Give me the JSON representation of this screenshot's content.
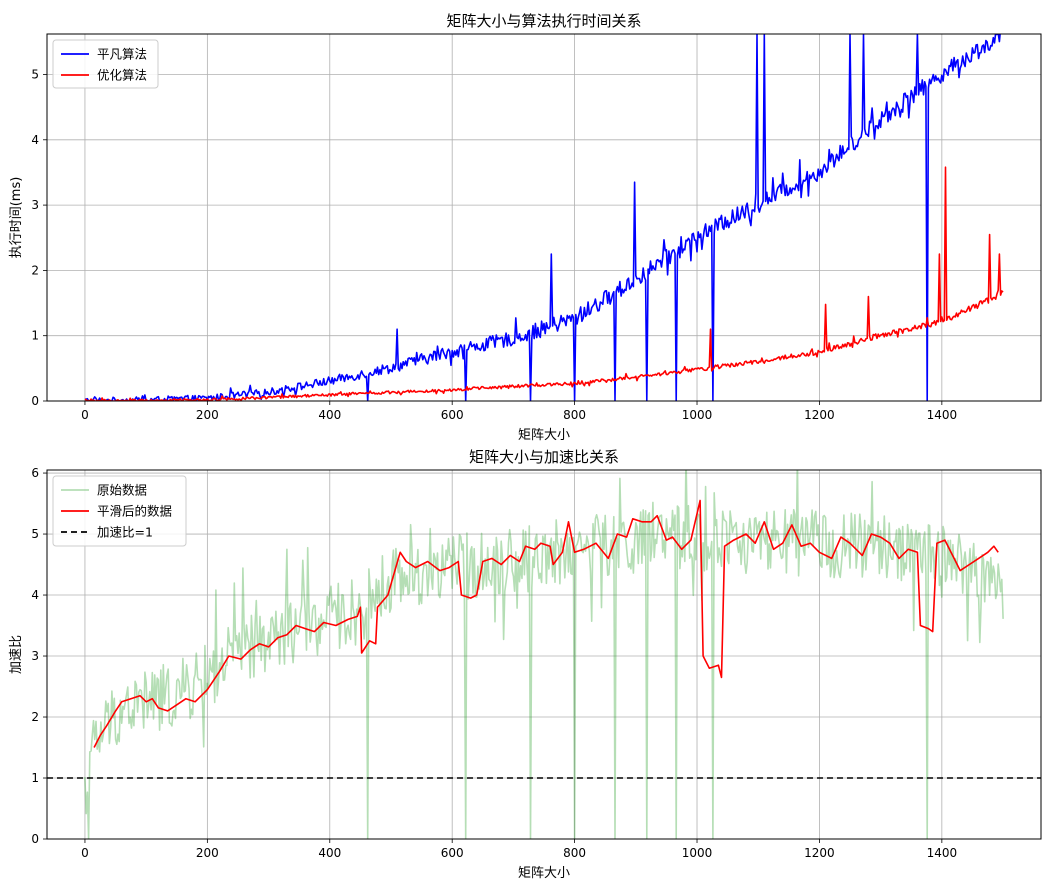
{
  "chart_data": [
    {
      "type": "line",
      "title": "矩阵大小与算法执行时间关系",
      "xlabel": "矩阵大小",
      "ylabel": "执行时间(ms)",
      "xlim": [
        -62,
        1562
      ],
      "ylim": [
        0,
        5.62
      ],
      "xticks": [
        0,
        200,
        400,
        600,
        800,
        1000,
        1200,
        1400
      ],
      "yticks": [
        0,
        1,
        2,
        3,
        4,
        5
      ],
      "grid": true,
      "legend": "top-left",
      "series": [
        {
          "name": "平凡算法",
          "color": "#0000ff",
          "trend": "quadratic growth from ~0 at size 0 to ~5.6 ms at size 1500 with noisy spikes",
          "trend_points": [
            [
              0,
              0.0
            ],
            [
              100,
              0.01
            ],
            [
              200,
              0.04
            ],
            [
              300,
              0.13
            ],
            [
              400,
              0.3
            ],
            [
              500,
              0.5
            ],
            [
              600,
              0.75
            ],
            [
              700,
              0.95
            ],
            [
              800,
              1.25
            ],
            [
              900,
              1.85
            ],
            [
              1000,
              2.5
            ],
            [
              1100,
              3.0
            ],
            [
              1200,
              3.5
            ],
            [
              1300,
              4.3
            ],
            [
              1400,
              5.0
            ],
            [
              1500,
              5.6
            ]
          ],
          "noise_scale": 0.13,
          "spikes": [
            [
              510,
              1.1
            ],
            [
              762,
              2.25
            ],
            [
              898,
              3.35
            ],
            [
              1025,
              5.28
            ],
            [
              1097,
              5.62
            ],
            [
              1109,
              5.62
            ],
            [
              1250,
              5.62
            ],
            [
              1272,
              5.62
            ],
            [
              1360,
              5.62
            ]
          ],
          "drops": [
            [
              462,
              0.0
            ],
            [
              622,
              0.0
            ],
            [
              727,
              0.0
            ],
            [
              800,
              0.0
            ],
            [
              866,
              0.0
            ],
            [
              918,
              0.0
            ],
            [
              965,
              0.0
            ],
            [
              1025,
              0.0
            ],
            [
              1375,
              0.0
            ]
          ]
        },
        {
          "name": "优化算法",
          "color": "#ff0000",
          "trend": "slow growth from ~0 at size 0 to ~1.6 ms at size 1500 with spikes",
          "trend_points": [
            [
              0,
              0.0
            ],
            [
              100,
              0.005
            ],
            [
              200,
              0.02
            ],
            [
              300,
              0.05
            ],
            [
              400,
              0.09
            ],
            [
              500,
              0.13
            ],
            [
              600,
              0.17
            ],
            [
              700,
              0.22
            ],
            [
              800,
              0.27
            ],
            [
              900,
              0.36
            ],
            [
              1000,
              0.48
            ],
            [
              1100,
              0.6
            ],
            [
              1200,
              0.75
            ],
            [
              1300,
              1.0
            ],
            [
              1400,
              1.2
            ],
            [
              1500,
              1.65
            ]
          ],
          "noise_scale": 0.05,
          "spikes": [
            [
              1022,
              1.1
            ],
            [
              1210,
              1.48
            ],
            [
              1280,
              1.6
            ],
            [
              1395,
              2.25
            ],
            [
              1406,
              3.58
            ],
            [
              1478,
              2.55
            ],
            [
              1493,
              2.25
            ]
          ]
        }
      ]
    },
    {
      "type": "line",
      "title": "矩阵大小与加速比关系",
      "xlabel": "矩阵大小",
      "ylabel": "加速比",
      "xlim": [
        -62,
        1562
      ],
      "ylim": [
        0,
        6.05
      ],
      "xticks": [
        0,
        200,
        400,
        600,
        800,
        1000,
        1200,
        1400
      ],
      "yticks": [
        0,
        1,
        2,
        3,
        4,
        5,
        6
      ],
      "grid": true,
      "legend": "top-left",
      "series": [
        {
          "name": "原始数据",
          "color": "#2ca02c",
          "opacity": 0.35,
          "trend": "noisy speedup rising from ~0.4 at size 0 to ~4.5, many spikes to the top and drops to 0",
          "trend_points": [
            [
              0,
              0.5
            ],
            [
              15,
              1.5
            ],
            [
              50,
              2.0
            ],
            [
              100,
              2.2
            ],
            [
              150,
              2.3
            ],
            [
              200,
              2.6
            ],
            [
              250,
              3.0
            ],
            [
              300,
              3.2
            ],
            [
              350,
              3.4
            ],
            [
              400,
              3.55
            ],
            [
              450,
              3.7
            ],
            [
              500,
              4.2
            ],
            [
              600,
              4.4
            ],
            [
              700,
              4.5
            ],
            [
              800,
              4.7
            ],
            [
              900,
              4.8
            ],
            [
              1000,
              4.9
            ],
            [
              1100,
              4.8
            ],
            [
              1200,
              4.8
            ],
            [
              1300,
              4.7
            ],
            [
              1400,
              4.6
            ],
            [
              1500,
              4.0
            ]
          ],
          "noise_scale": 0.55,
          "drops": [
            [
              462,
              0.0
            ],
            [
              622,
              0.0
            ],
            [
              727,
              0.0
            ],
            [
              800,
              0.0
            ],
            [
              866,
              0.0
            ],
            [
              918,
              0.0
            ],
            [
              965,
              0.0
            ],
            [
              1025,
              0.0
            ],
            [
              1375,
              0.0
            ]
          ]
        },
        {
          "name": "平滑后的数据",
          "color": "#ff0000",
          "trend": "smoothed speedup from ~1.5 at size 15 rising to ~4.6 by size 600, ~4.8 plateau, with dips near sizes 450, 1010 and 1370",
          "points": [
            [
              15,
              1.5
            ],
            [
              25,
              1.7
            ],
            [
              35,
              1.85
            ],
            [
              50,
              2.1
            ],
            [
              60,
              2.25
            ],
            [
              75,
              2.3
            ],
            [
              90,
              2.35
            ],
            [
              100,
              2.25
            ],
            [
              110,
              2.3
            ],
            [
              120,
              2.15
            ],
            [
              135,
              2.1
            ],
            [
              150,
              2.2
            ],
            [
              165,
              2.3
            ],
            [
              180,
              2.25
            ],
            [
              200,
              2.45
            ],
            [
              220,
              2.75
            ],
            [
              235,
              3.0
            ],
            [
              255,
              2.95
            ],
            [
              270,
              3.1
            ],
            [
              285,
              3.2
            ],
            [
              300,
              3.15
            ],
            [
              315,
              3.3
            ],
            [
              330,
              3.35
            ],
            [
              345,
              3.5
            ],
            [
              360,
              3.45
            ],
            [
              375,
              3.4
            ],
            [
              390,
              3.55
            ],
            [
              410,
              3.5
            ],
            [
              430,
              3.6
            ],
            [
              445,
              3.65
            ],
            [
              450,
              3.8
            ],
            [
              452,
              3.05
            ],
            [
              465,
              3.25
            ],
            [
              475,
              3.2
            ],
            [
              478,
              3.8
            ],
            [
              495,
              4.0
            ],
            [
              505,
              4.35
            ],
            [
              515,
              4.7
            ],
            [
              525,
              4.55
            ],
            [
              540,
              4.45
            ],
            [
              560,
              4.55
            ],
            [
              580,
              4.4
            ],
            [
              595,
              4.45
            ],
            [
              610,
              4.55
            ],
            [
              615,
              4.0
            ],
            [
              630,
              3.95
            ],
            [
              640,
              4.0
            ],
            [
              650,
              4.55
            ],
            [
              665,
              4.6
            ],
            [
              680,
              4.5
            ],
            [
              695,
              4.65
            ],
            [
              710,
              4.55
            ],
            [
              720,
              4.8
            ],
            [
              735,
              4.75
            ],
            [
              745,
              4.85
            ],
            [
              760,
              4.8
            ],
            [
              765,
              4.5
            ],
            [
              780,
              4.7
            ],
            [
              790,
              5.2
            ],
            [
              800,
              4.7
            ],
            [
              815,
              4.75
            ],
            [
              835,
              4.85
            ],
            [
              855,
              4.6
            ],
            [
              870,
              5.0
            ],
            [
              885,
              4.95
            ],
            [
              895,
              5.25
            ],
            [
              910,
              5.2
            ],
            [
              925,
              5.2
            ],
            [
              935,
              5.3
            ],
            [
              950,
              4.9
            ],
            [
              960,
              4.95
            ],
            [
              975,
              4.75
            ],
            [
              990,
              4.9
            ],
            [
              1005,
              5.55
            ],
            [
              1010,
              3.0
            ],
            [
              1020,
              2.8
            ],
            [
              1035,
              2.85
            ],
            [
              1040,
              2.65
            ],
            [
              1045,
              4.8
            ],
            [
              1060,
              4.9
            ],
            [
              1080,
              5.0
            ],
            [
              1095,
              4.85
            ],
            [
              1110,
              5.2
            ],
            [
              1125,
              4.75
            ],
            [
              1140,
              4.85
            ],
            [
              1155,
              5.15
            ],
            [
              1170,
              4.8
            ],
            [
              1185,
              4.85
            ],
            [
              1200,
              4.7
            ],
            [
              1220,
              4.6
            ],
            [
              1235,
              4.95
            ],
            [
              1250,
              4.85
            ],
            [
              1270,
              4.65
            ],
            [
              1285,
              5.0
            ],
            [
              1300,
              4.95
            ],
            [
              1315,
              4.85
            ],
            [
              1330,
              4.6
            ],
            [
              1345,
              4.75
            ],
            [
              1360,
              4.7
            ],
            [
              1365,
              3.5
            ],
            [
              1378,
              3.45
            ],
            [
              1385,
              3.4
            ],
            [
              1392,
              4.85
            ],
            [
              1405,
              4.9
            ],
            [
              1420,
              4.6
            ],
            [
              1430,
              4.4
            ],
            [
              1445,
              4.5
            ],
            [
              1460,
              4.6
            ],
            [
              1475,
              4.7
            ],
            [
              1485,
              4.8
            ],
            [
              1492,
              4.7
            ]
          ]
        },
        {
          "name": "加速比=1",
          "color": "#000000",
          "dash": "6,4",
          "y": 1
        }
      ]
    }
  ]
}
